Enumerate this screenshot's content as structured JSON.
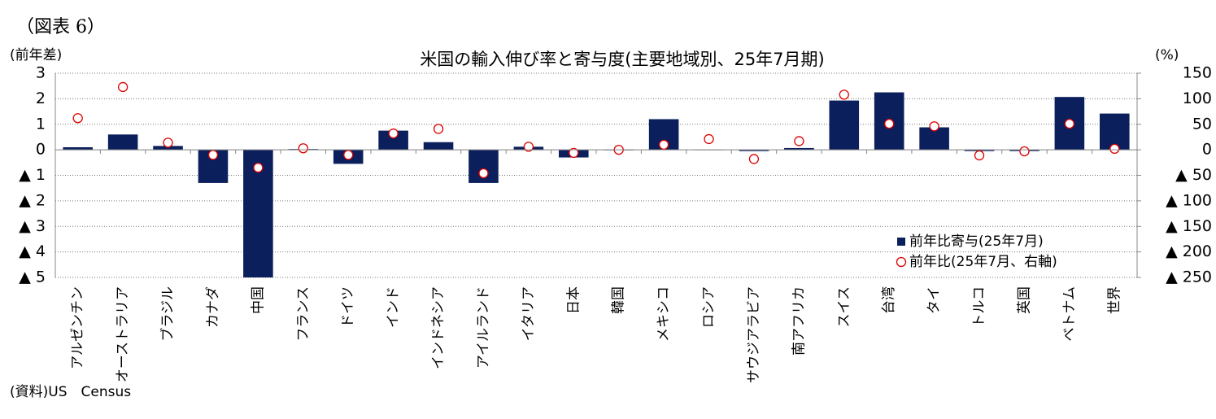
{
  "figure_label": "（図表 6）",
  "chart_data": {
    "type": "bar",
    "title": "米国の輸入伸び率と寄与度(主要地域別、25年7月期)",
    "y_label": "(前年差)",
    "y2_label": "(%)",
    "source": "(資料)US　Census",
    "categories": [
      "アルゼンチン",
      "オーストラリア",
      "ブラジル",
      "カナダ",
      "中国",
      "フランス",
      "ドイツ",
      "インド",
      "インドネシア",
      "アイルランド",
      "イタリア",
      "日本",
      "韓国",
      "メキシコ",
      "ロシア",
      "サウジアラビア",
      "南アフリカ",
      "スイス",
      "台湾",
      "タイ",
      "トルコ",
      "英国",
      "ベトナム",
      "世界"
    ],
    "series": [
      {
        "name": "前年比寄与(25年7月)",
        "color": "#0b1f5c",
        "axis": "y",
        "values": [
          0.1,
          0.6,
          0.15,
          -1.3,
          -5.0,
          0.03,
          -0.55,
          0.75,
          0.3,
          -1.3,
          0.12,
          -0.3,
          -0.02,
          1.2,
          0.0,
          -0.05,
          0.07,
          1.93,
          2.25,
          0.88,
          -0.05,
          -0.05,
          2.07,
          1.42
        ]
      },
      {
        "name": "前年比(25年7月、右軸)",
        "color": "#e00000",
        "axis": "y2",
        "values": [
          62,
          123,
          14,
          -10,
          -35,
          3,
          -10,
          32,
          41,
          -46,
          6,
          -6,
          0,
          10,
          21,
          -18,
          17,
          108,
          51,
          46,
          -11,
          -3,
          51,
          2
        ]
      }
    ],
    "ylim": [
      -5,
      3
    ],
    "yticks": [
      3,
      2,
      1,
      0,
      {
        "value": -1,
        "label": "▲ 1"
      },
      {
        "value": -2,
        "label": "▲ 2"
      },
      {
        "value": -3,
        "label": "▲ 3"
      },
      {
        "value": -4,
        "label": "▲ 4"
      },
      {
        "value": -5,
        "label": "▲ 5"
      }
    ],
    "y2lim": [
      -250,
      150
    ],
    "y2ticks": [
      150,
      100,
      50,
      0,
      {
        "value": -50,
        "label": "▲ 50"
      },
      {
        "value": -100,
        "label": "▲ 100"
      },
      {
        "value": -150,
        "label": "▲ 150"
      },
      {
        "value": -200,
        "label": "▲ 200"
      },
      {
        "value": -250,
        "label": "▲ 250"
      }
    ],
    "grid": true,
    "legend": "lower right"
  }
}
